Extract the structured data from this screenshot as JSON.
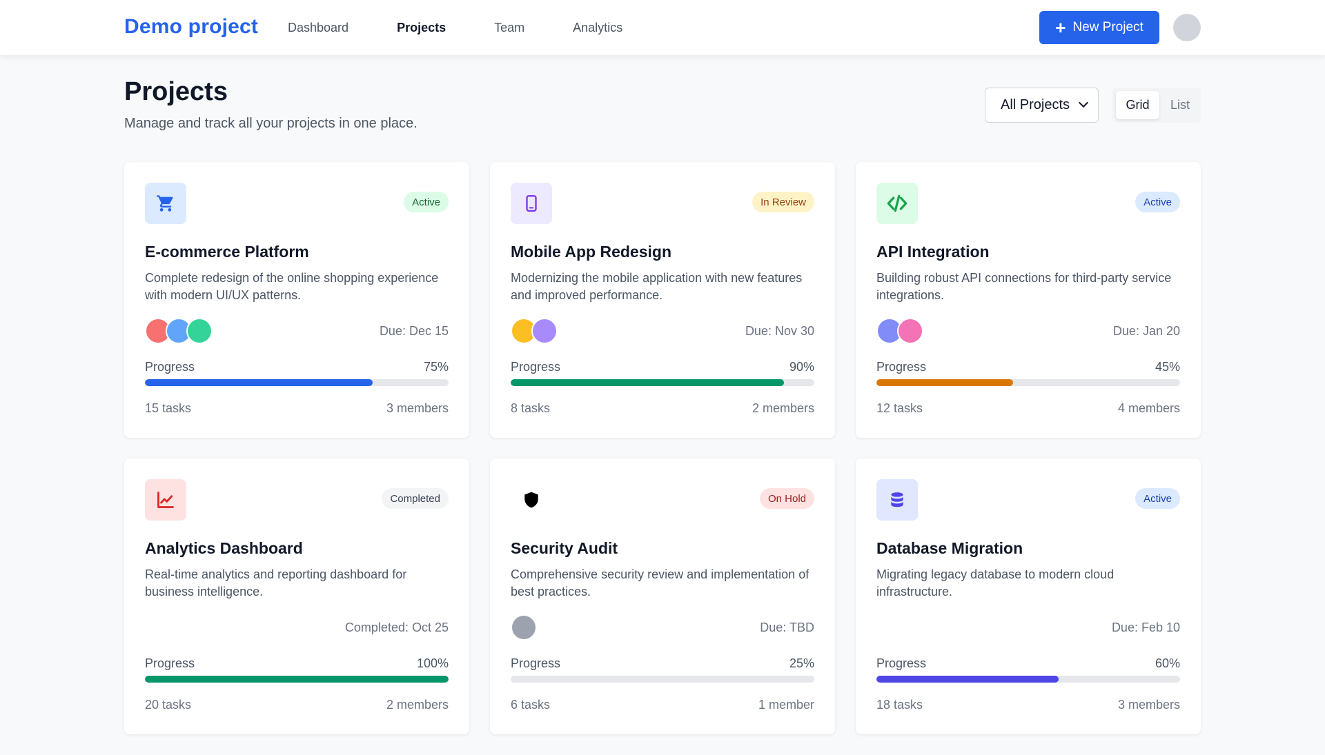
{
  "header": {
    "brand": "Demo project",
    "nav": [
      {
        "label": "Dashboard",
        "active": false
      },
      {
        "label": "Projects",
        "active": true
      },
      {
        "label": "Team",
        "active": false
      },
      {
        "label": "Analytics",
        "active": false
      }
    ],
    "new_button_icon": "plus-icon",
    "new_button_label": "New Project"
  },
  "page": {
    "title": "Projects",
    "subtitle": "Manage and track all your projects in one place.",
    "filter_value": "All Projects",
    "view_options": [
      "Grid",
      "List"
    ],
    "view_selected": "Grid"
  },
  "projects": [
    {
      "icon": "cart-icon",
      "icon_bg": "#dbeafe",
      "icon_color": "#2563eb",
      "status": "Active",
      "status_bg": "#dcfce7",
      "status_color": "#166534",
      "title": "E-commerce Platform",
      "description": "Complete redesign of the online shopping experience with modern UI/UX patterns.",
      "avatar_colors": [
        "#f87171",
        "#60a5fa",
        "#34d399"
      ],
      "due": "Due: Dec 15",
      "progress_label": "Progress",
      "progress": 75,
      "progress_text": "75%",
      "progress_color": "#2563eb",
      "tasks": "15 tasks",
      "members": "3 members"
    },
    {
      "icon": "mobile-icon",
      "icon_bg": "#ede9fe",
      "icon_color": "#7c3aed",
      "status": "In Review",
      "status_bg": "#fef3c7",
      "status_color": "#92400e",
      "title": "Mobile App Redesign",
      "description": "Modernizing the mobile application with new features and improved performance.",
      "avatar_colors": [
        "#fbbf24",
        "#a78bfa"
      ],
      "due": "Due: Nov 30",
      "progress_label": "Progress",
      "progress": 90,
      "progress_text": "90%",
      "progress_color": "#059669",
      "tasks": "8 tasks",
      "members": "2 members"
    },
    {
      "icon": "code-icon",
      "icon_bg": "#dcfce7",
      "icon_color": "#16a34a",
      "status": "Active",
      "status_bg": "#dbeafe",
      "status_color": "#1e40af",
      "title": "API Integration",
      "description": "Building robust API connections for third-party service integrations.",
      "avatar_colors": [
        "#818cf8",
        "#f472b6"
      ],
      "due": "Due: Jan 20",
      "progress_label": "Progress",
      "progress": 45,
      "progress_text": "45%",
      "progress_color": "#d97706",
      "tasks": "12 tasks",
      "members": "4 members"
    },
    {
      "icon": "chart-line-icon",
      "icon_bg": "#fee2e2",
      "icon_color": "#dc2626",
      "status": "Completed",
      "status_bg": "#f3f4f6",
      "status_color": "#374151",
      "title": "Analytics Dashboard",
      "description": "Real-time analytics and reporting dashboard for business intelligence.",
      "avatar_colors": [],
      "due": "Completed: Oct 25",
      "progress_label": "Progress",
      "progress": 100,
      "progress_text": "100%",
      "progress_color": "#059669",
      "tasks": "20 tasks",
      "members": "2 members"
    },
    {
      "icon": "shield-icon",
      "icon_bg": "transparent",
      "icon_color": "#000000",
      "status": "On Hold",
      "status_bg": "#fee2e2",
      "status_color": "#991b1b",
      "title": "Security Audit",
      "description": "Comprehensive security review and implementation of best practices.",
      "avatar_colors": [
        "#9ca3af"
      ],
      "due": "Due: TBD",
      "progress_label": "Progress",
      "progress": 25,
      "progress_text": "25%",
      "progress_color": "#e5e7eb",
      "tasks": "6 tasks",
      "members": "1 member"
    },
    {
      "icon": "database-icon",
      "icon_bg": "#e0e7ff",
      "icon_color": "#4f46e5",
      "status": "Active",
      "status_bg": "#dbeafe",
      "status_color": "#1e40af",
      "title": "Database Migration",
      "description": "Migrating legacy database to modern cloud infrastructure.",
      "avatar_colors": [],
      "due": "Due: Feb 10",
      "progress_label": "Progress",
      "progress": 60,
      "progress_text": "60%",
      "progress_color": "#4f46e5",
      "tasks": "18 tasks",
      "members": "3 members"
    }
  ]
}
